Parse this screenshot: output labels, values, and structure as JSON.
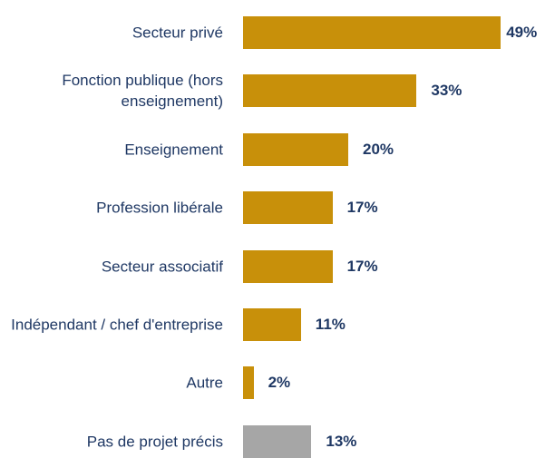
{
  "chart_data": {
    "type": "bar",
    "orientation": "horizontal",
    "categories": [
      "Secteur privé",
      "Fonction publique (hors enseignement)",
      "Enseignement",
      "Profession libérale",
      "Secteur associatif",
      "Indépendant / chef d'entreprise",
      "Autre",
      "Pas de projet précis"
    ],
    "values": [
      49,
      33,
      20,
      17,
      17,
      11,
      2,
      13
    ],
    "value_labels": [
      "49%",
      "33%",
      "20%",
      "17%",
      "17%",
      "11%",
      "2%",
      "13%"
    ],
    "colors": [
      "#C8900A",
      "#C8900A",
      "#C8900A",
      "#C8900A",
      "#C8900A",
      "#C8900A",
      "#C8900A",
      "#A6A6A6"
    ],
    "xlim": [
      0,
      50
    ]
  }
}
